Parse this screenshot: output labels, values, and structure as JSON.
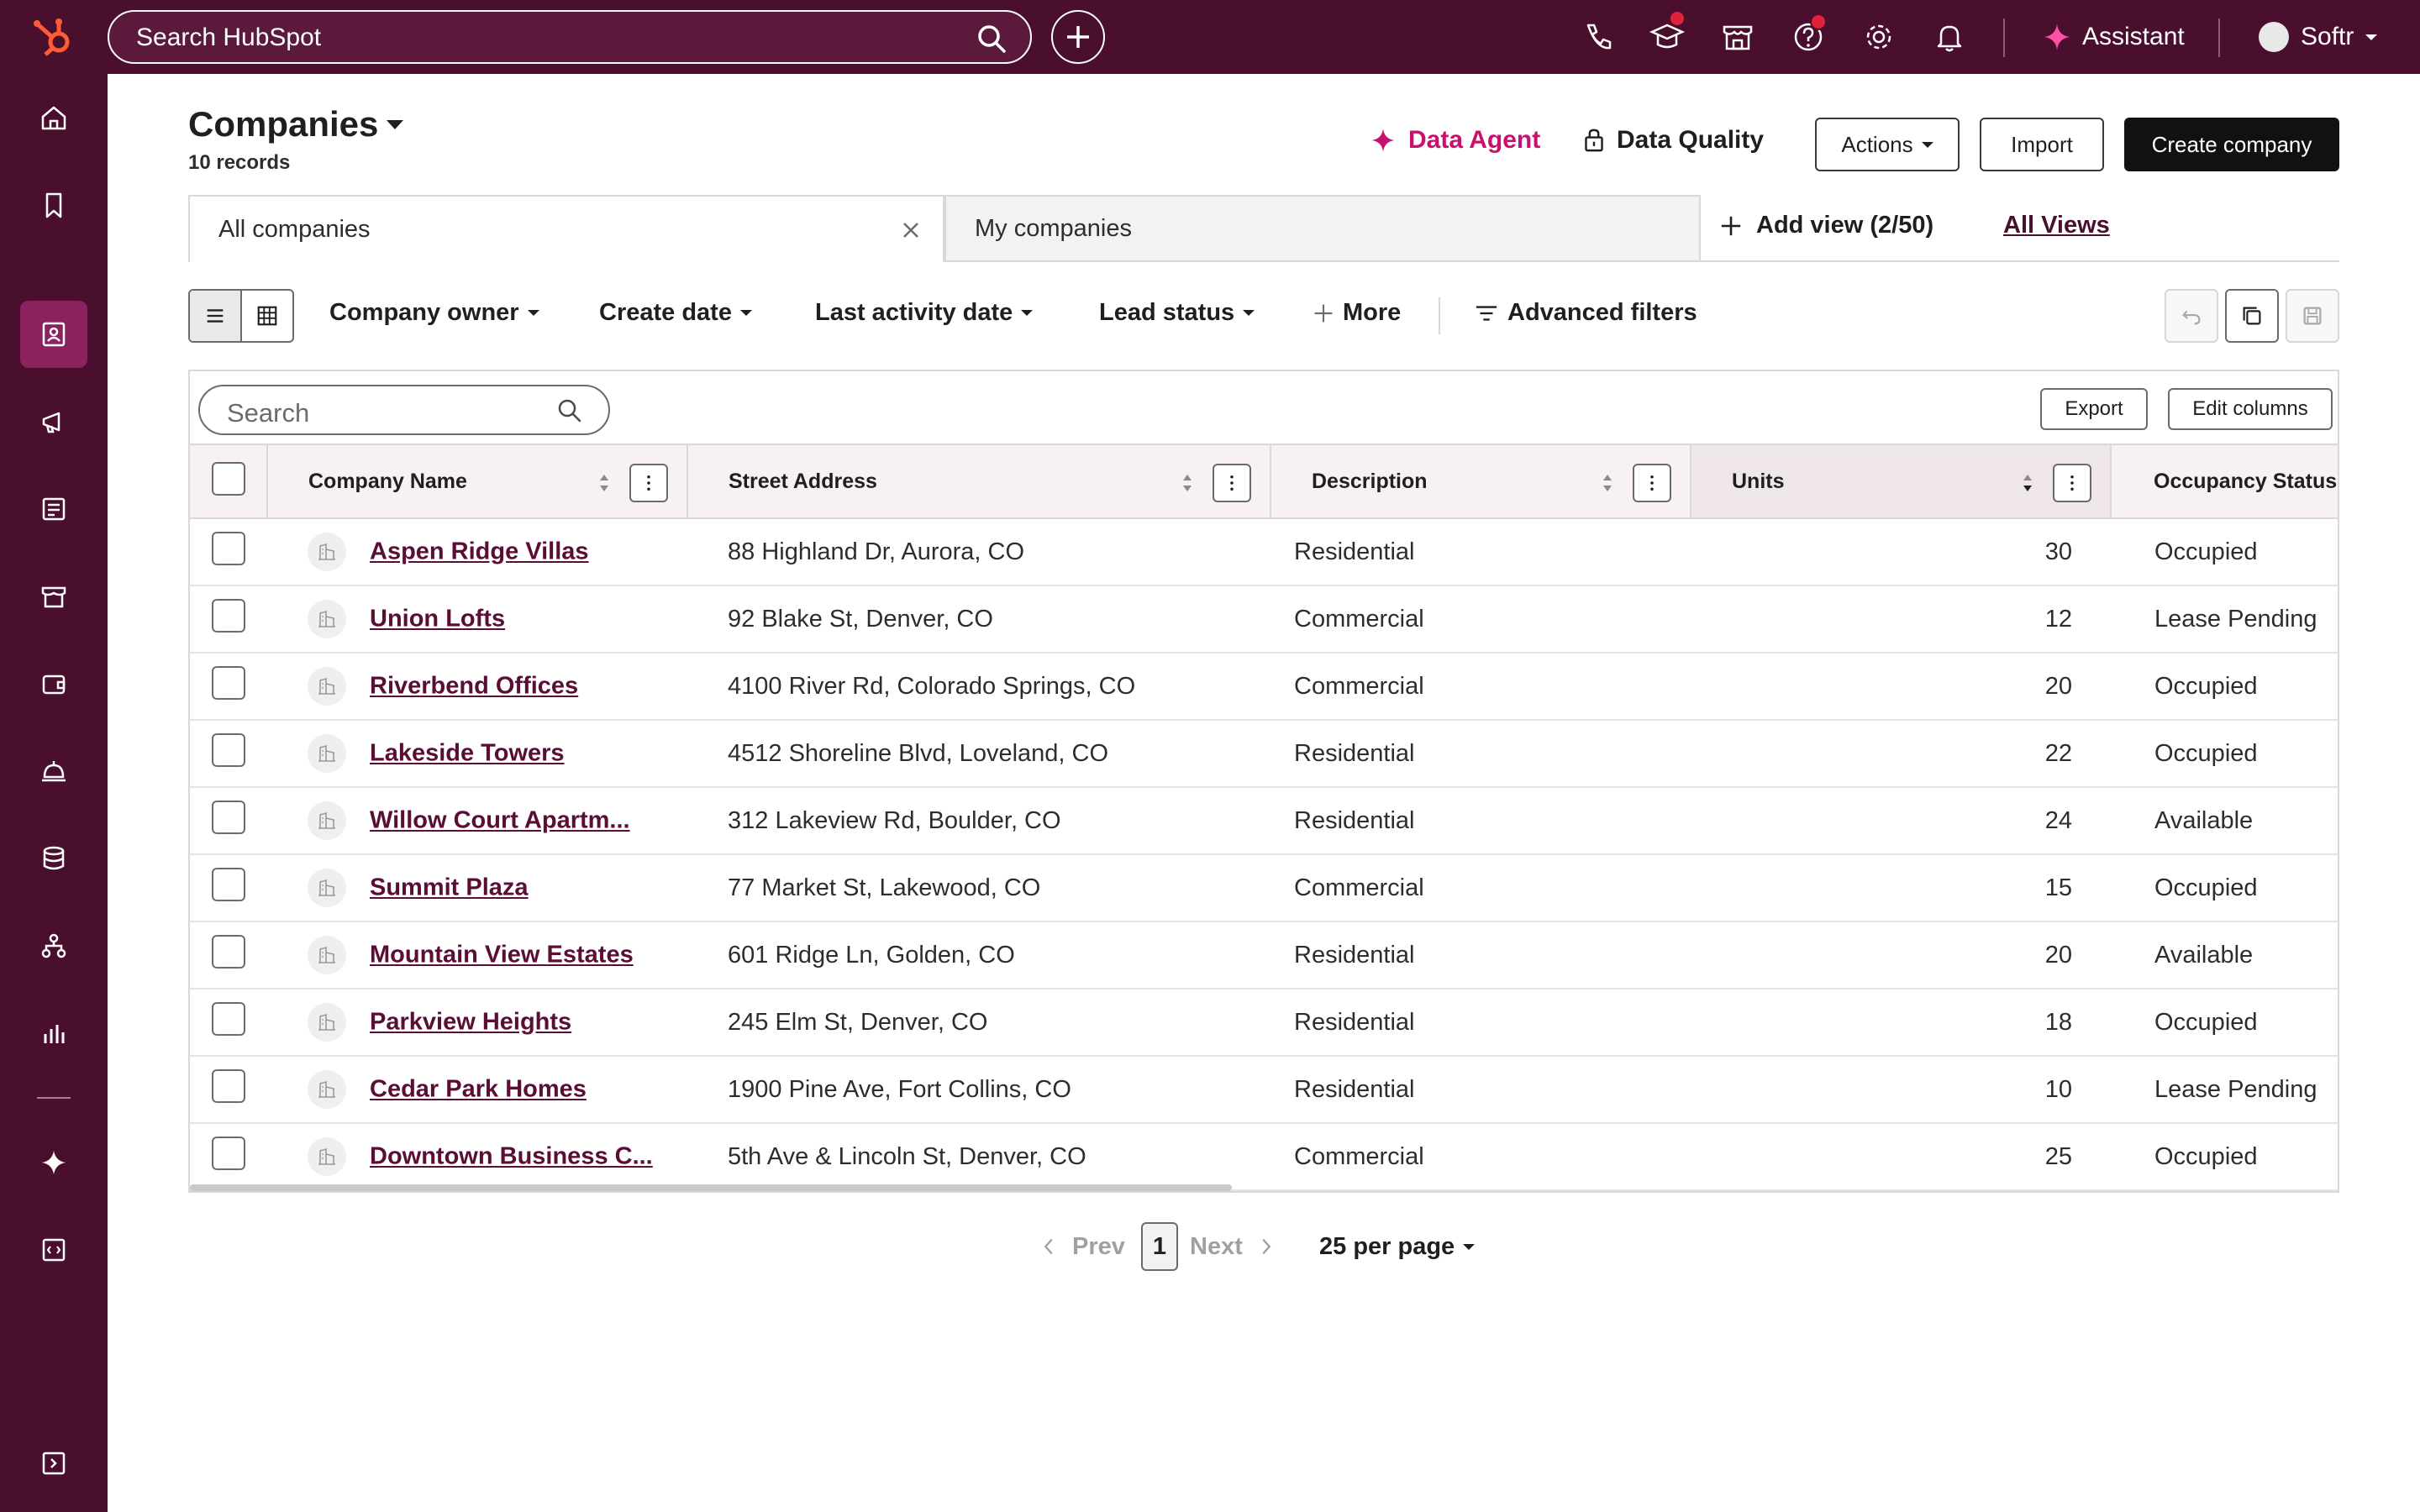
{
  "topbar": {
    "search_placeholder": "Search HubSpot",
    "assistant_label": "Assistant",
    "user_name": "Softr",
    "colors": {
      "bar": "#4b0f2e",
      "notification_dot": "#e0213c"
    }
  },
  "header": {
    "title": "Companies",
    "record_count": "10 records",
    "data_agent": "Data Agent",
    "data_quality": "Data Quality",
    "actions": "Actions",
    "import": "Import",
    "create": "Create company",
    "accent_color": "#c8106e"
  },
  "views": {
    "tabs": [
      {
        "label": "All companies"
      },
      {
        "label": "My companies"
      }
    ],
    "add_view": "Add view (2/50)",
    "all_views": "All Views"
  },
  "filters": {
    "company_owner": "Company owner",
    "create_date": "Create date",
    "last_activity": "Last activity date",
    "lead_status": "Lead status",
    "more": "More",
    "advanced": "Advanced filters"
  },
  "table": {
    "search_placeholder": "Search",
    "export": "Export",
    "edit_columns": "Edit columns",
    "columns": [
      "Company Name",
      "Street Address",
      "Description",
      "Units",
      "Occupancy Status"
    ],
    "rows": [
      {
        "name": "Aspen Ridge Villas",
        "address": "88 Highland Dr, Aurora, CO",
        "description": "Residential",
        "units": "30",
        "status": "Occupied"
      },
      {
        "name": "Union Lofts",
        "address": "92 Blake St, Denver, CO",
        "description": "Commercial",
        "units": "12",
        "status": "Lease Pending"
      },
      {
        "name": "Riverbend Offices",
        "address": "4100 River Rd, Colorado Springs, CO",
        "description": "Commercial",
        "units": "20",
        "status": "Occupied"
      },
      {
        "name": "Lakeside Towers",
        "address": "4512 Shoreline Blvd, Loveland, CO",
        "description": "Residential",
        "units": "22",
        "status": "Occupied"
      },
      {
        "name": "Willow Court Apartm...",
        "address": "312 Lakeview Rd, Boulder, CO",
        "description": "Residential",
        "units": "24",
        "status": "Available"
      },
      {
        "name": "Summit Plaza",
        "address": "77 Market St, Lakewood, CO",
        "description": "Commercial",
        "units": "15",
        "status": "Occupied"
      },
      {
        "name": "Mountain View Estates",
        "address": "601 Ridge Ln, Golden, CO",
        "description": "Residential",
        "units": "20",
        "status": "Available"
      },
      {
        "name": "Parkview Heights",
        "address": "245 Elm St, Denver, CO",
        "description": "Residential",
        "units": "18",
        "status": "Occupied"
      },
      {
        "name": "Cedar Park Homes",
        "address": "1900 Pine Ave, Fort Collins, CO",
        "description": "Residential",
        "units": "10",
        "status": "Lease Pending"
      },
      {
        "name": "Downtown Business C...",
        "address": "5th Ave & Lincoln St, Denver, CO",
        "description": "Commercial",
        "units": "25",
        "status": "Occupied"
      }
    ]
  },
  "pagination": {
    "prev": "Prev",
    "current_page": "1",
    "next": "Next",
    "per_page": "25 per page"
  },
  "icons": {
    "sidebar": [
      "home-icon",
      "bookmark-icon",
      "contacts-icon",
      "marketing-icon",
      "content-icon",
      "commerce-icon",
      "sales-icon",
      "service-icon",
      "data-icon",
      "automation-icon",
      "reporting-icon",
      "breeze-icon",
      "developer-icon",
      "expand-icon"
    ]
  }
}
